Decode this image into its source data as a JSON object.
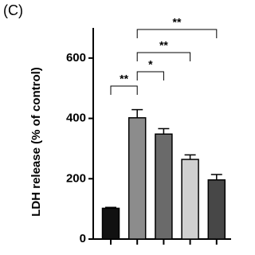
{
  "chart_data": {
    "type": "bar",
    "panel_label": "(C)",
    "y_label": "LDH release (% of control)",
    "categories": [
      null,
      null,
      null,
      null,
      null
    ],
    "values": [
      102,
      402,
      348,
      264,
      196
    ],
    "errors": [
      3,
      27,
      18,
      15,
      18
    ],
    "colors": [
      "#111111",
      "#8c8c8c",
      "#6a6a6a",
      "#d0d0d0",
      "#474747"
    ],
    "ylim": [
      0,
      700
    ],
    "yticks": [
      0,
      200,
      400,
      600
    ],
    "significance": [
      "**",
      "*",
      "**",
      "**"
    ]
  }
}
